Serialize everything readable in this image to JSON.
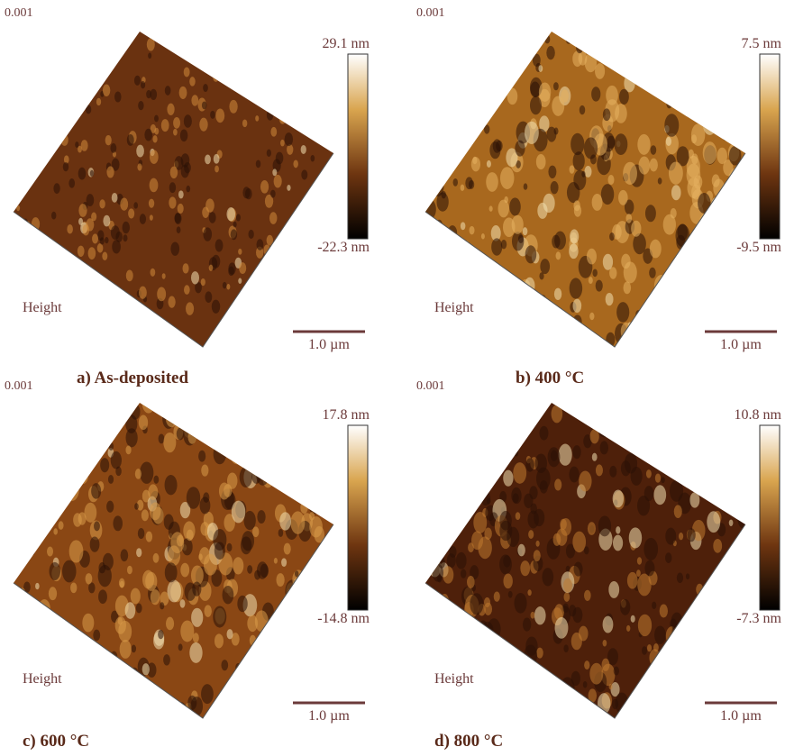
{
  "panels": [
    {
      "corner": "0.001",
      "max": "29.1 nm",
      "min": "-22.3 nm",
      "label": "Height",
      "scale": "1.0 µm",
      "caption": "a) As-deposited"
    },
    {
      "corner": "0.001",
      "max": "7.5 nm",
      "min": "-9.5 nm",
      "label": "Height",
      "scale": "1.0 µm",
      "caption": "b) 400 °C"
    },
    {
      "corner": "0.001",
      "max": "17.8 nm",
      "min": "-14.8 nm",
      "label": "Height",
      "scale": "1.0 µm",
      "caption": "c) 600 °C"
    },
    {
      "corner": "0.001",
      "max": "10.8 nm",
      "min": "-7.3 nm",
      "label": "Height",
      "scale": "1.0 µm",
      "caption": "d) 800 °C"
    }
  ]
}
